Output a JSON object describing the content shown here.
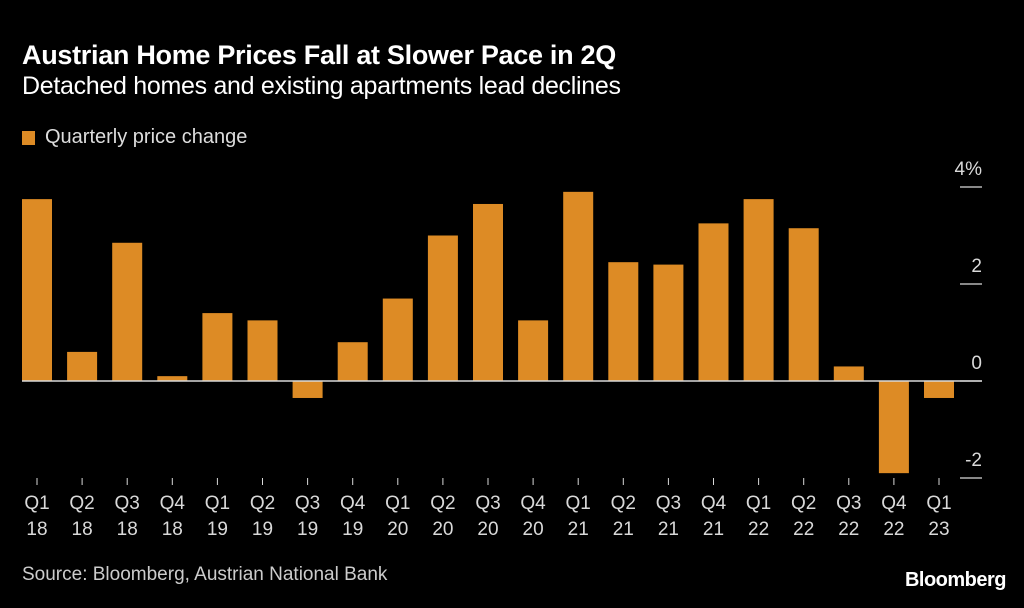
{
  "header": {
    "title": "Austrian Home Prices Fall at Slower Pace in 2Q",
    "subtitle": "Detached homes and existing apartments lead declines"
  },
  "legend": {
    "label": "Quarterly price change",
    "color": "#dd8b25"
  },
  "footer": {
    "source": "Source: Bloomberg, Austrian National Bank",
    "brand": "Bloomberg"
  },
  "chart_data": {
    "type": "bar",
    "title": "Austrian Home Prices Fall at Slower Pace in 2Q",
    "subtitle": "Detached homes and existing apartments lead declines",
    "xlabel": "",
    "ylabel": "",
    "categories": [
      "Q1 18",
      "Q2 18",
      "Q3 18",
      "Q4 18",
      "Q1 19",
      "Q2 19",
      "Q3 19",
      "Q4 19",
      "Q1 20",
      "Q2 20",
      "Q3 20",
      "Q4 20",
      "Q1 21",
      "Q2 21",
      "Q3 21",
      "Q4 21",
      "Q1 22",
      "Q2 22",
      "Q3 22",
      "Q4 22",
      "Q1 23"
    ],
    "category_lines": [
      [
        "Q1",
        "18"
      ],
      [
        "Q2",
        "18"
      ],
      [
        "Q3",
        "18"
      ],
      [
        "Q4",
        "18"
      ],
      [
        "Q1",
        "19"
      ],
      [
        "Q2",
        "19"
      ],
      [
        "Q3",
        "19"
      ],
      [
        "Q4",
        "19"
      ],
      [
        "Q1",
        "20"
      ],
      [
        "Q2",
        "20"
      ],
      [
        "Q3",
        "20"
      ],
      [
        "Q4",
        "20"
      ],
      [
        "Q1",
        "21"
      ],
      [
        "Q2",
        "21"
      ],
      [
        "Q3",
        "21"
      ],
      [
        "Q4",
        "21"
      ],
      [
        "Q1",
        "22"
      ],
      [
        "Q2",
        "22"
      ],
      [
        "Q3",
        "22"
      ],
      [
        "Q4",
        "22"
      ],
      [
        "Q1",
        "23"
      ]
    ],
    "series": [
      {
        "name": "Quarterly price change",
        "color": "#dd8b25",
        "values": [
          3.75,
          0.6,
          2.85,
          0.1,
          1.4,
          1.25,
          -0.35,
          0.8,
          1.7,
          3.0,
          3.65,
          1.25,
          3.9,
          2.45,
          2.4,
          3.25,
          3.75,
          3.15,
          0.3,
          -1.9,
          -0.35
        ]
      }
    ],
    "ylim": [
      -2,
      4
    ],
    "yticks": [
      4,
      2,
      0,
      -2
    ],
    "ytick_labels": [
      "4%",
      "2",
      "0",
      "-2"
    ],
    "y_axis_position": "right",
    "grid": false,
    "legend_position": "top-left"
  }
}
